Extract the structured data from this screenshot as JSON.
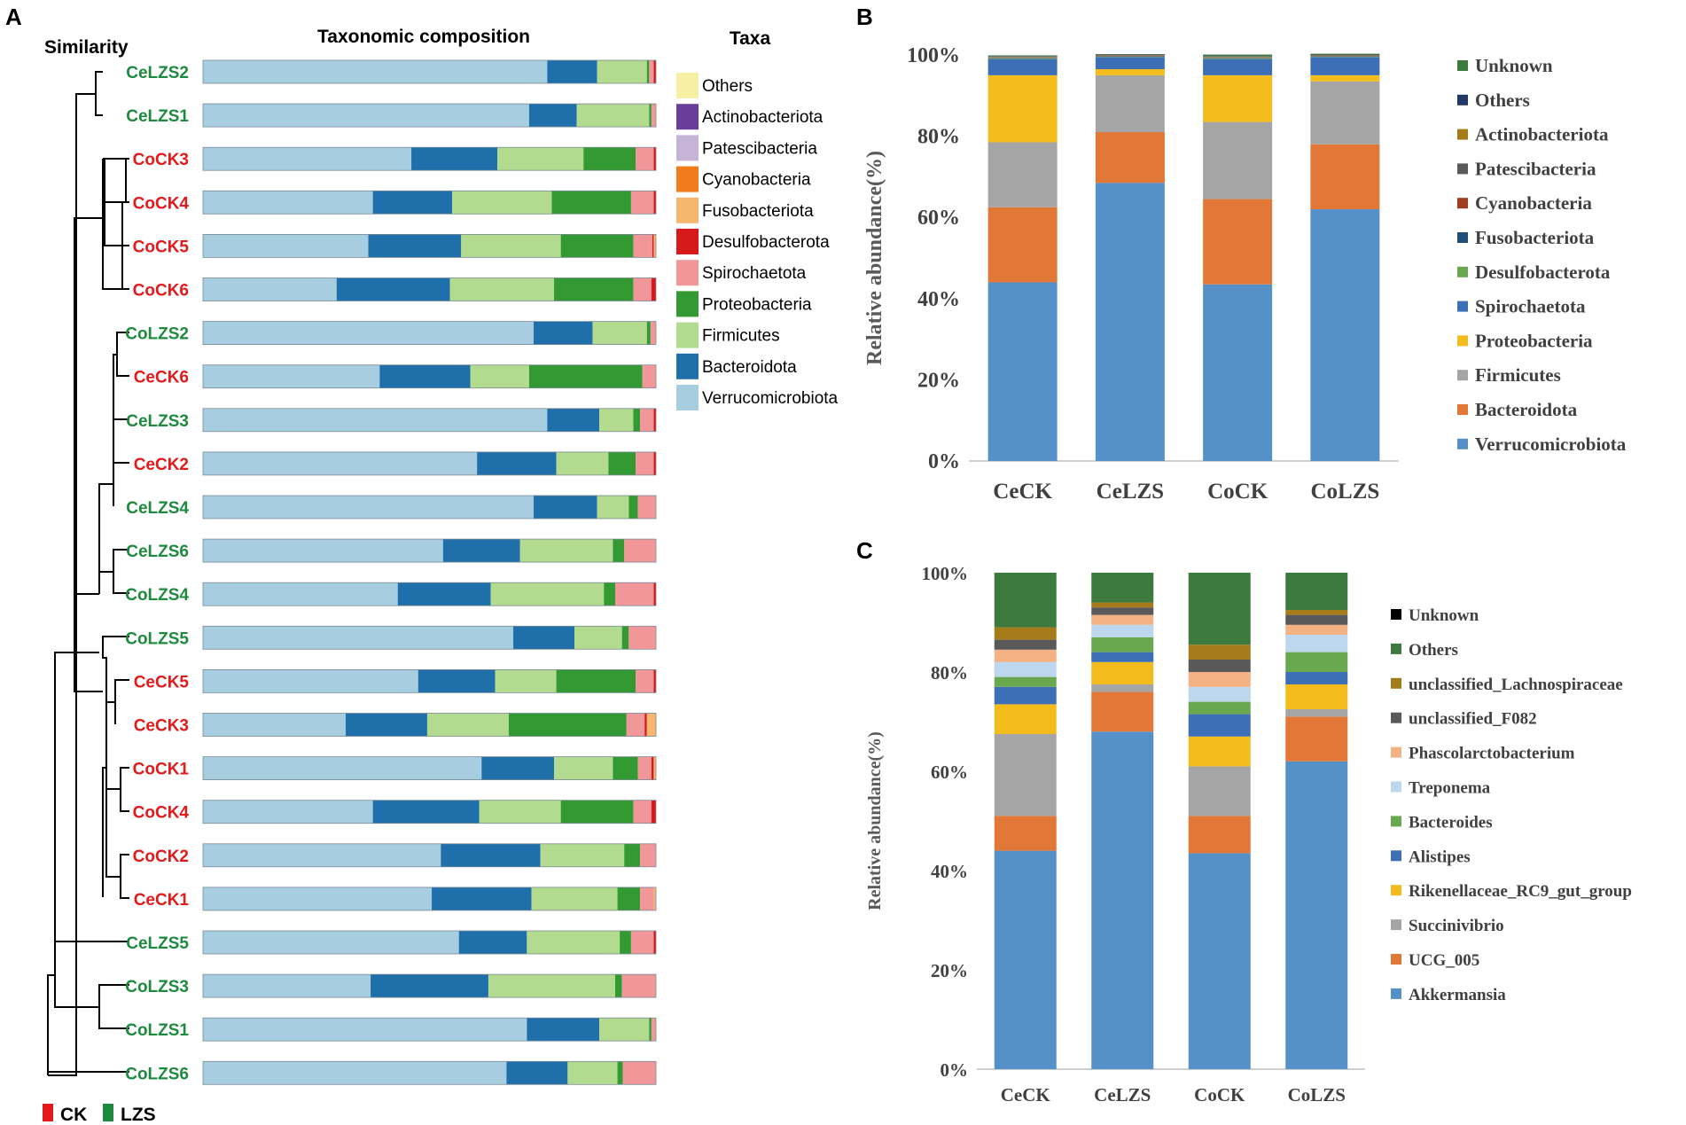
{
  "panels": {
    "a": {
      "letter": "A",
      "similarity_label": "Similarity",
      "composition_label": "Taxonomic composition",
      "taxa_label": "Taxa",
      "legend_group_ck": "CK",
      "legend_group_lzs": "LZS",
      "group_colors": {
        "CK": "#e31a1c",
        "LZS": "#1e8a3e"
      }
    },
    "b": {
      "letter": "B"
    },
    "c": {
      "letter": "C"
    }
  },
  "chart_data": [
    {
      "id": "A",
      "type": "bar",
      "orientation": "horizontal",
      "stacked": true,
      "title": "Taxonomic composition",
      "xlim": [
        0,
        100
      ],
      "series": [
        {
          "name": "Verrucomicrobiota",
          "color": "#a6cde0"
        },
        {
          "name": "Bacteroidota",
          "color": "#1f6fab"
        },
        {
          "name": "Firmicutes",
          "color": "#b2db8f"
        },
        {
          "name": "Proteobacteria",
          "color": "#339933"
        },
        {
          "name": "Spirochaetota",
          "color": "#f1979a"
        },
        {
          "name": "Desulfobacterota",
          "color": "#d7191c"
        },
        {
          "name": "Fusobacteriota",
          "color": "#f7b66d"
        },
        {
          "name": "Cyanobacteria",
          "color": "#f07c1e"
        },
        {
          "name": "Patescibacteria",
          "color": "#c5b3d8"
        },
        {
          "name": "Actinobacteriota",
          "color": "#6a3d9a"
        },
        {
          "name": "Others",
          "color": "#f5f0a3"
        }
      ],
      "legend_order": [
        "Others",
        "Actinobacteriota",
        "Patescibacteria",
        "Cyanobacteria",
        "Fusobacteriota",
        "Desulfobacterota",
        "Spirochaetota",
        "Proteobacteria",
        "Firmicutes",
        "Bacteroidota",
        "Verrucomicrobiota"
      ],
      "samples": [
        {
          "name": "CeLZS2",
          "group": "LZS",
          "values": [
            76,
            11,
            11,
            0.5,
            1,
            0.5
          ]
        },
        {
          "name": "CeLZS1",
          "group": "LZS",
          "values": [
            72,
            10.5,
            16,
            0.5,
            1,
            0
          ]
        },
        {
          "name": "CoCK3",
          "group": "CK",
          "values": [
            46,
            19,
            19,
            11.5,
            4,
            0.5
          ]
        },
        {
          "name": "CoCK4",
          "group": "CK",
          "values": [
            37.5,
            17.5,
            22,
            17.5,
            5,
            0.5
          ]
        },
        {
          "name": "CoCK5",
          "group": "CK",
          "values": [
            36.5,
            20.5,
            22,
            16,
            4.2,
            0.3,
            0.5
          ]
        },
        {
          "name": "CoCK6",
          "group": "CK",
          "values": [
            29.5,
            25,
            23,
            17.5,
            4,
            1
          ]
        },
        {
          "name": "CoLZS2",
          "group": "LZS",
          "values": [
            73,
            13,
            12,
            0.8,
            1.2
          ]
        },
        {
          "name": "CeCK6",
          "group": "CK",
          "values": [
            39,
            20,
            13,
            25,
            3
          ]
        },
        {
          "name": "CeLZS3",
          "group": "LZS",
          "values": [
            76,
            11.5,
            7.5,
            1.5,
            3,
            0.5
          ]
        },
        {
          "name": "CeCK2",
          "group": "CK",
          "values": [
            60.5,
            17.5,
            11.5,
            6,
            4,
            0.5
          ]
        },
        {
          "name": "CeLZS4",
          "group": "LZS",
          "values": [
            73,
            14,
            7,
            2,
            4
          ]
        },
        {
          "name": "CeLZS6",
          "group": "LZS",
          "values": [
            53,
            17,
            20.5,
            2.5,
            7
          ]
        },
        {
          "name": "CoLZS4",
          "group": "LZS",
          "values": [
            43,
            20.5,
            25,
            2.5,
            8.5,
            0.5
          ]
        },
        {
          "name": "CoLZS5",
          "group": "LZS",
          "values": [
            68.5,
            13.5,
            10.5,
            1.5,
            6
          ]
        },
        {
          "name": "CeCK5",
          "group": "CK",
          "values": [
            47.5,
            17,
            13.5,
            17.5,
            4,
            0.5
          ]
        },
        {
          "name": "CeCK3",
          "group": "CK",
          "values": [
            31.5,
            18,
            18,
            26,
            4,
            0.5,
            2
          ]
        },
        {
          "name": "CoCK1",
          "group": "CK",
          "values": [
            61.5,
            16,
            13,
            5.5,
            3,
            0.5,
            0.5
          ]
        },
        {
          "name": "CoCK4",
          "group": "CK",
          "values": [
            37.5,
            23.5,
            18,
            16,
            4,
            1
          ]
        },
        {
          "name": "CoCK2",
          "group": "CK",
          "values": [
            52.5,
            22,
            18.5,
            3.5,
            3.5
          ]
        },
        {
          "name": "CeCK1",
          "group": "CK",
          "values": [
            50.5,
            22,
            19,
            5,
            3,
            0,
            0.5
          ]
        },
        {
          "name": "CeLZS5",
          "group": "LZS",
          "values": [
            56.5,
            15,
            20.5,
            2.5,
            5,
            0.5
          ]
        },
        {
          "name": "CoLZS3",
          "group": "LZS",
          "values": [
            37,
            26,
            28,
            1.5,
            7.5
          ]
        },
        {
          "name": "CoLZS1",
          "group": "LZS",
          "values": [
            71.5,
            16,
            11,
            0.5,
            1
          ]
        },
        {
          "name": "CoLZS6",
          "group": "LZS",
          "values": [
            67,
            13.5,
            11,
            1.2,
            7.3
          ]
        }
      ]
    },
    {
      "id": "B",
      "type": "bar",
      "stacked": true,
      "categories": [
        "CeCK",
        "CeLZS",
        "CoCK",
        "CoLZS"
      ],
      "ylabel": "Relative abundance(%)",
      "ylim": [
        0,
        100
      ],
      "yticks": [
        "0%",
        "20%",
        "40%",
        "60%",
        "80%",
        "100%"
      ],
      "series": [
        {
          "name": "Verrucomicrobiota",
          "color": "#5591c8",
          "values": [
            44,
            68.5,
            43.5,
            62
          ]
        },
        {
          "name": "Bacteroidota",
          "color": "#e27838",
          "values": [
            18.5,
            12.5,
            21,
            16
          ]
        },
        {
          "name": "Firmicutes",
          "color": "#a5a5a5",
          "values": [
            16,
            14,
            19,
            15.5
          ]
        },
        {
          "name": "Proteobacteria",
          "color": "#f3bc1c",
          "values": [
            16.5,
            1.5,
            11.5,
            1.5
          ]
        },
        {
          "name": "Spirochaetota",
          "color": "#3c6fb6",
          "values": [
            4,
            3,
            4,
            4.5
          ]
        },
        {
          "name": "Desulfobacterota",
          "color": "#6aa84f",
          "values": [
            0.2,
            0.1,
            0.2,
            0.1
          ]
        },
        {
          "name": "Fusobacteriota",
          "color": "#1f4e79",
          "values": [
            0.1,
            0.1,
            0.1,
            0.1
          ]
        },
        {
          "name": "Cyanobacteria",
          "color": "#9e3d1f",
          "values": [
            0.1,
            0.1,
            0.1,
            0.1
          ]
        },
        {
          "name": "Patescibacteria",
          "color": "#595959",
          "values": [
            0.1,
            0.1,
            0.1,
            0.1
          ]
        },
        {
          "name": "Actinobacteriota",
          "color": "#a67c1a",
          "values": [
            0.1,
            0.1,
            0.1,
            0.1
          ]
        },
        {
          "name": "Others",
          "color": "#1f3864",
          "values": [
            0.1,
            0.1,
            0.1,
            0.1
          ]
        },
        {
          "name": "Unknown",
          "color": "#3d7a3d",
          "values": [
            0.2,
            0.1,
            0.4,
            0.2
          ]
        }
      ],
      "legend_order": [
        "Unknown",
        "Others",
        "Actinobacteriota",
        "Patescibacteria",
        "Cyanobacteria",
        "Fusobacteriota",
        "Desulfobacterota",
        "Spirochaetota",
        "Proteobacteria",
        "Firmicutes",
        "Bacteroidota",
        "Verrucomicrobiota"
      ]
    },
    {
      "id": "C",
      "type": "bar",
      "stacked": true,
      "categories": [
        "CeCK",
        "CeLZS",
        "CoCK",
        "CoLZS"
      ],
      "ylabel": "Relative abundance(%)",
      "ylim": [
        0,
        100
      ],
      "yticks": [
        "0%",
        "20%",
        "40%",
        "60%",
        "80%",
        "100%"
      ],
      "series": [
        {
          "name": "Akkermansia",
          "color": "#5591c8",
          "values": [
            44,
            68,
            43.5,
            62
          ]
        },
        {
          "name": "UCG_005",
          "color": "#e27838",
          "values": [
            7,
            8,
            7.5,
            9
          ]
        },
        {
          "name": "Succinivibrio",
          "color": "#a5a5a5",
          "values": [
            16.5,
            1.5,
            10,
            1.5
          ]
        },
        {
          "name": "Rikenellaceae_RC9_gut_group",
          "color": "#f3bc1c",
          "values": [
            6,
            4.5,
            6,
            5
          ]
        },
        {
          "name": "Alistipes",
          "color": "#3c6fb6",
          "values": [
            3.5,
            2,
            4.5,
            2.5
          ]
        },
        {
          "name": "Bacteroides",
          "color": "#6aa84f",
          "values": [
            2,
            3,
            2.5,
            4
          ]
        },
        {
          "name": "Treponema",
          "color": "#bdd7ee",
          "values": [
            3,
            2.5,
            3,
            3.5
          ]
        },
        {
          "name": "Phascolarctobacterium",
          "color": "#f4b183",
          "values": [
            2.5,
            2,
            3,
            2
          ]
        },
        {
          "name": "unclassified_F082",
          "color": "#595959",
          "values": [
            2,
            1.5,
            2.5,
            2
          ]
        },
        {
          "name": "unclassified_Lachnospiraceae",
          "color": "#a67c1a",
          "values": [
            2.5,
            1,
            3,
            1
          ]
        },
        {
          "name": "Others",
          "color": "#3d7a3d",
          "values": [
            11,
            6,
            14.5,
            7.5
          ]
        },
        {
          "name": "Unknown",
          "color": "#000000",
          "values": [
            0,
            0,
            0,
            0
          ]
        }
      ],
      "legend_order": [
        "Unknown",
        "Others",
        "unclassified_Lachnospiraceae",
        "unclassified_F082",
        "Phascolarctobacterium",
        "Treponema",
        "Bacteroides",
        "Alistipes",
        "Rikenellaceae_RC9_gut_group",
        "Succinivibrio",
        "UCG_005",
        "Akkermansia"
      ]
    }
  ]
}
